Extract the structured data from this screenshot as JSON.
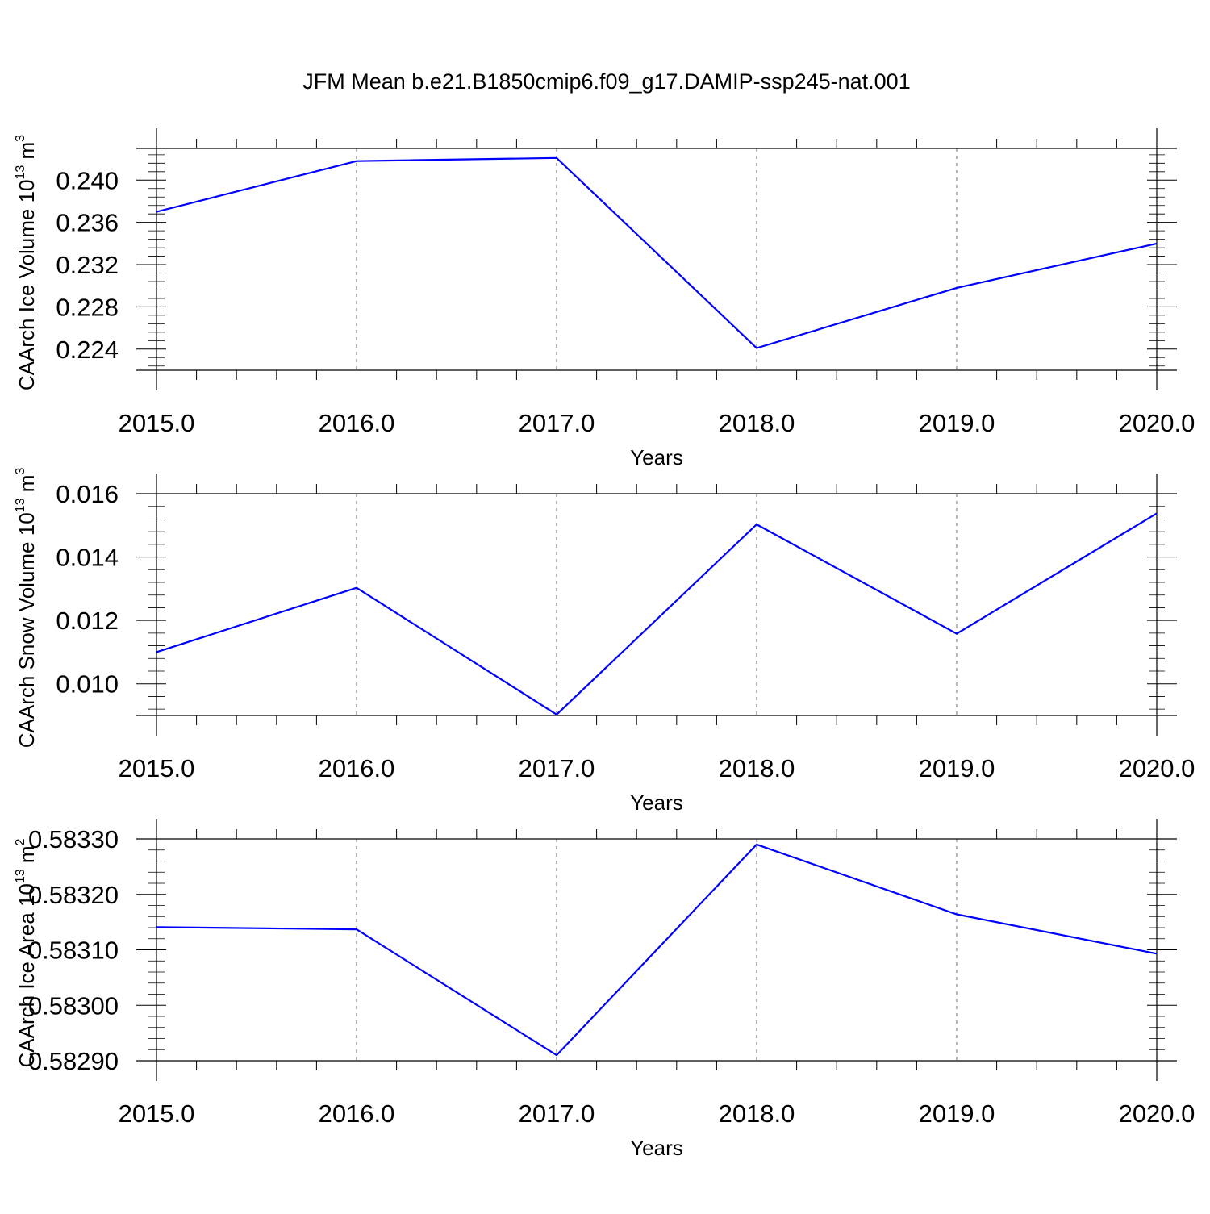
{
  "chart_data": [
    {
      "type": "line",
      "title": "JFM Mean b.e21.B1850cmip6.f09_g17.DAMIP-ssp245-nat.001",
      "xlabel": "Years",
      "ylabel": "CAArch Ice Volume 10",
      "ylabel_exp": "13",
      "ylabel_unit": " m",
      "ylabel_unit_exp": "3",
      "x": [
        2015,
        2016,
        2017,
        2018,
        2019,
        2020
      ],
      "x_tick_labels": [
        "2015.0",
        "2016.0",
        "2017.0",
        "2018.0",
        "2019.0",
        "2020.0"
      ],
      "xlim": [
        2015,
        2020
      ],
      "ylim": [
        0.222,
        0.243
      ],
      "y_ticks": [
        0.224,
        0.228,
        0.232,
        0.236,
        0.24
      ],
      "y_tick_labels": [
        "0.224",
        "0.228",
        "0.232",
        "0.236",
        "0.240"
      ],
      "series": [
        {
          "values": [
            0.237,
            0.2418,
            0.2421,
            0.2241,
            0.2298,
            0.234
          ],
          "color": "#0000ff"
        }
      ],
      "grid": "x-dashed"
    },
    {
      "type": "line",
      "title": "",
      "xlabel": "Years",
      "ylabel": "CAArch Snow Volume 10",
      "ylabel_exp": "13",
      "ylabel_unit": " m",
      "ylabel_unit_exp": "3",
      "x": [
        2015,
        2016,
        2017,
        2018,
        2019,
        2020
      ],
      "x_tick_labels": [
        "2015.0",
        "2016.0",
        "2017.0",
        "2018.0",
        "2019.0",
        "2020.0"
      ],
      "xlim": [
        2015,
        2020
      ],
      "ylim": [
        0.009,
        0.016
      ],
      "y_ticks": [
        0.01,
        0.012,
        0.014,
        0.016
      ],
      "y_tick_labels": [
        "0.010",
        "0.012",
        "0.014",
        "0.016"
      ],
      "series": [
        {
          "values": [
            0.011,
            0.01303,
            0.00903,
            0.01503,
            0.01158,
            0.01538
          ],
          "color": "#0000ff"
        }
      ],
      "grid": "x-dashed"
    },
    {
      "type": "line",
      "title": "",
      "xlabel": "Years",
      "ylabel": "CAArch Ice Area 10",
      "ylabel_exp": "13",
      "ylabel_unit": " m",
      "ylabel_unit_exp": "2",
      "x": [
        2015,
        2016,
        2017,
        2018,
        2019,
        2020
      ],
      "x_tick_labels": [
        "2015.0",
        "2016.0",
        "2017.0",
        "2018.0",
        "2019.0",
        "2020.0"
      ],
      "xlim": [
        2015,
        2020
      ],
      "ylim": [
        0.5829,
        0.5833
      ],
      "y_ticks": [
        0.5829,
        0.583,
        0.5831,
        0.5832,
        0.5833
      ],
      "y_tick_labels": [
        "0.58290",
        "0.58300",
        "0.58310",
        "0.58320",
        "0.58330"
      ],
      "series": [
        {
          "values": [
            0.583141,
            0.583137,
            0.58291,
            0.58329,
            0.583164,
            0.583093
          ],
          "color": "#0000ff"
        }
      ],
      "grid": "x-dashed"
    }
  ]
}
